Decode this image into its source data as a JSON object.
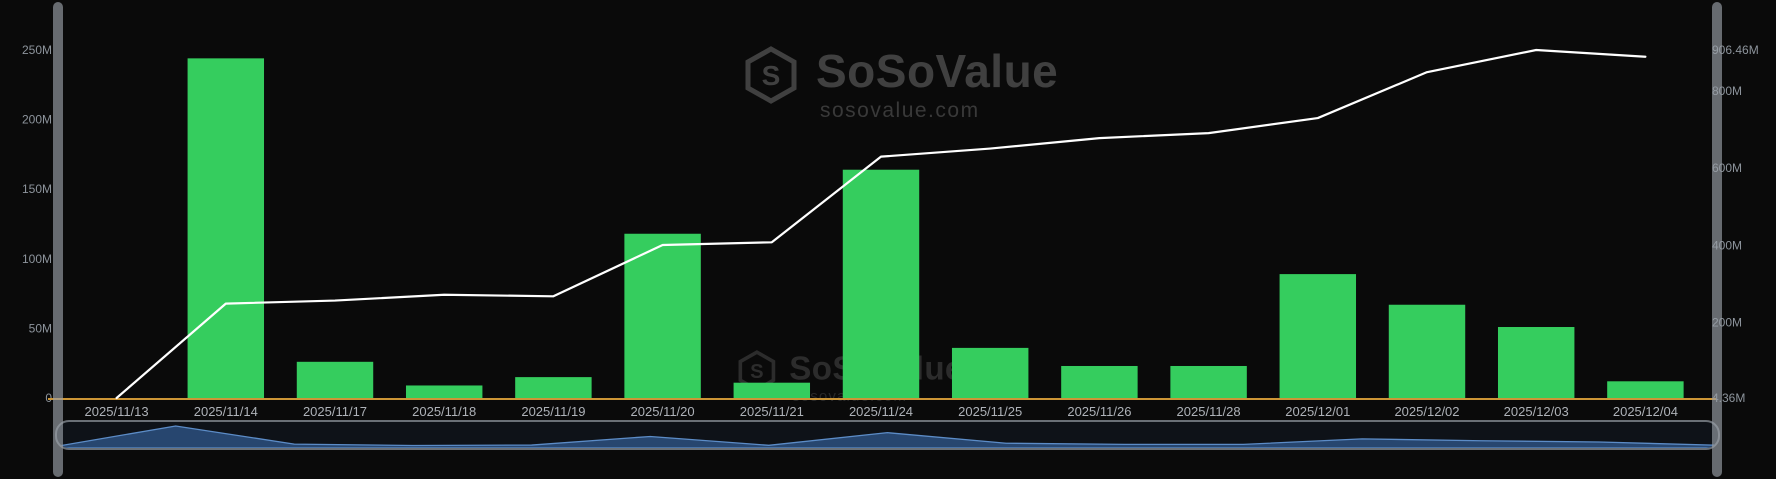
{
  "watermark": {
    "brand": "SoSoValue",
    "domain": "sosovalue.com"
  },
  "colors": {
    "background": "#0a0a0a",
    "bar": "#35cd5e",
    "line": "#ffffff",
    "baseline": "#cd9636",
    "axis_text": "#8d949c",
    "navigator_area": "#27466f",
    "navigator_line": "#5c8cc7",
    "navigator_border": "#6a7077"
  },
  "chart_data": {
    "type": "bar",
    "title": "",
    "xlabel": "",
    "ylabel": "",
    "unit": "M",
    "grid": false,
    "legend_position": "none",
    "categories": [
      "2025/11/13",
      "2025/11/14",
      "2025/11/17",
      "2025/11/18",
      "2025/11/19",
      "2025/11/20",
      "2025/11/21",
      "2025/11/24",
      "2025/11/25",
      "2025/11/26",
      "2025/11/28",
      "2025/12/01",
      "2025/12/02",
      "2025/12/03",
      "2025/12/04"
    ],
    "series": [
      {
        "name": "daily-bar-series",
        "type": "bar",
        "axis": "left",
        "color": "#35cd5e",
        "values": [
          0,
          244,
          26,
          9,
          15,
          118,
          11,
          164,
          36,
          23,
          23,
          89,
          67,
          51,
          12
        ]
      },
      {
        "name": "cumulative-line-series",
        "type": "line",
        "axis": "right",
        "color": "#ffffff",
        "values": [
          4.36,
          249,
          257,
          272,
          268,
          401,
          408,
          630,
          651,
          678,
          691,
          730,
          849,
          906.46,
          889
        ]
      }
    ],
    "left_axis": {
      "min": 0,
      "max": 250,
      "ticks": [
        {
          "label": "0",
          "value": 0
        },
        {
          "label": "50M",
          "value": 50
        },
        {
          "label": "100M",
          "value": 100
        },
        {
          "label": "150M",
          "value": 150
        },
        {
          "label": "200M",
          "value": 200
        },
        {
          "label": "250M",
          "value": 250
        }
      ]
    },
    "right_axis": {
      "min": 4.36,
      "max": 906.46,
      "ticks": [
        {
          "label": "4.36M",
          "value": 4.36
        },
        {
          "label": "200M",
          "value": 200
        },
        {
          "label": "400M",
          "value": 400
        },
        {
          "label": "600M",
          "value": 600
        },
        {
          "label": "800M",
          "value": 800
        },
        {
          "label": "906.46M",
          "value": 906.46
        }
      ]
    },
    "baseline_color": "#cd9636"
  }
}
